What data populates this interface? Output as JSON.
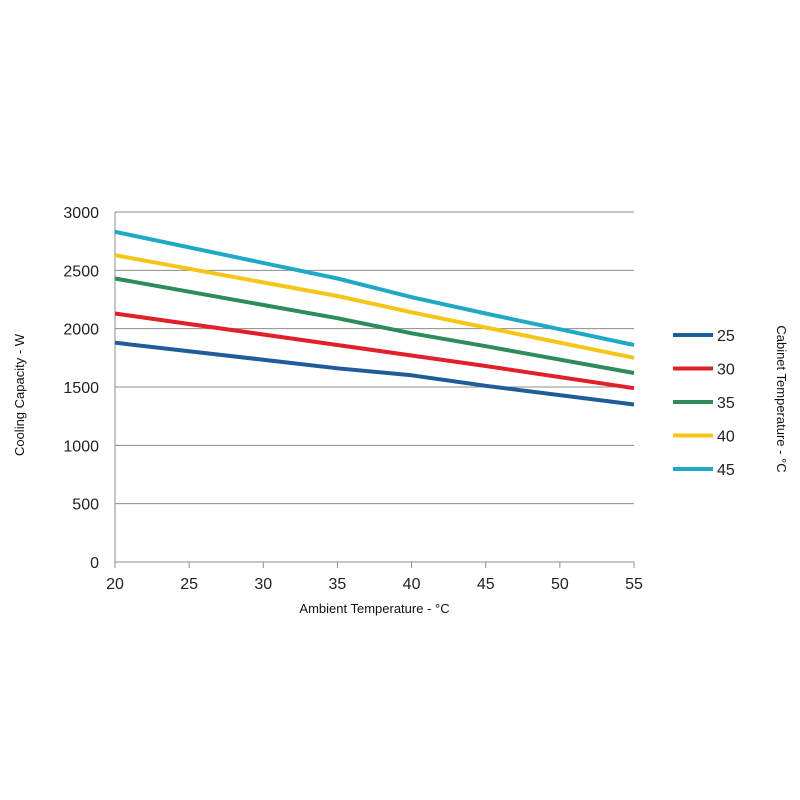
{
  "chart_data": {
    "type": "line",
    "title": "",
    "xlabel": "Ambient Temperature - °C",
    "ylabel": "Cooling Capacity - W",
    "legend_title": "Cabinet Temperature - °C",
    "legend_position": "right",
    "grid": "horizontal",
    "xlim": [
      20,
      55
    ],
    "ylim": [
      0,
      3000
    ],
    "x_ticks": [
      "20",
      "25",
      "30",
      "35",
      "40",
      "45",
      "50",
      "55"
    ],
    "y_ticks": [
      "0",
      "500",
      "1000",
      "1500",
      "2000",
      "2500",
      "3000"
    ],
    "x": [
      20,
      35,
      40,
      45,
      55
    ],
    "series": [
      {
        "name": "25",
        "color": "#1f5c99",
        "values": [
          1880,
          1660,
          1600,
          1510,
          1350
        ]
      },
      {
        "name": "30",
        "color": "#e0202a",
        "values": [
          2130,
          1860,
          1770,
          1680,
          1490
        ]
      },
      {
        "name": "35",
        "color": "#2e8b5a",
        "values": [
          2430,
          2090,
          1960,
          1850,
          1620
        ]
      },
      {
        "name": "40",
        "color": "#f5c518",
        "values": [
          2630,
          2280,
          2140,
          2010,
          1750
        ]
      },
      {
        "name": "45",
        "color": "#1fa9c4",
        "values": [
          2830,
          2430,
          2270,
          2130,
          1860
        ]
      }
    ]
  }
}
